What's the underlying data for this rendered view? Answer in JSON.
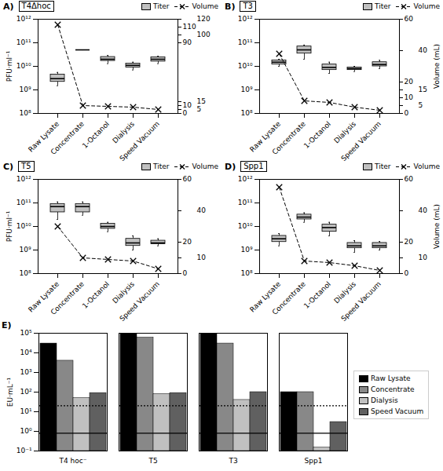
{
  "chart_data": [
    {
      "type": "box",
      "title": "T4Δhoc",
      "annotations": [
        "A)"
      ],
      "categories": [
        "Raw Lysate",
        "Concentrate",
        "1-Octanol",
        "Dialysis",
        "Speed Vacuum"
      ],
      "ylabel": "PFU·ml⁻¹",
      "log": "y",
      "ylim": [
        100000000.0,
        1000000000000.0
      ],
      "yticks": [
        {
          "value": 100000000.0,
          "label": "10⁸"
        },
        {
          "value": 1000000000.0,
          "label": "10⁹"
        },
        {
          "value": 10000000000.0,
          "label": "10¹⁰"
        },
        {
          "value": 100000000000.0,
          "label": "10¹¹"
        },
        {
          "value": 1000000000000.0,
          "label": "10¹²"
        }
      ],
      "y2lim": [
        0,
        120
      ],
      "y2ticks": [
        0,
        5,
        10,
        15,
        90,
        100,
        110,
        120
      ],
      "legend": "upper right",
      "series": [
        {
          "name": "Titer",
          "type": "box",
          "color": "#c0c0c0",
          "median": [
            3000000000.0,
            50000000000.0,
            20000000000.0,
            11000000000.0,
            20000000000.0
          ],
          "q1": [
            2200000000.0,
            50000000000.0,
            17000000000.0,
            9000000000.0,
            16000000000.0
          ],
          "q3": [
            4500000000.0,
            50000000000.0,
            25000000000.0,
            13000000000.0,
            24000000000.0
          ],
          "low": [
            1500000000.0,
            50000000000.0,
            13000000000.0,
            7000000000.0,
            13000000000.0
          ],
          "high": [
            5500000000.0,
            50000000000.0,
            29000000000.0,
            15000000000.0,
            27000000000.0
          ]
        },
        {
          "name": "Volume",
          "type": "line",
          "axis": "y2",
          "color": "#000000",
          "marker": "x",
          "line_style": "dashed",
          "values": [
            113,
            10,
            9,
            8,
            5
          ]
        }
      ]
    },
    {
      "type": "box",
      "title": "T3",
      "annotations": [
        "B)"
      ],
      "categories": [
        "Raw Lysate",
        "Concentrate",
        "1-Octanol",
        "Dialysis",
        "Speed Vacuum"
      ],
      "y2label": "Volume (mL)",
      "log": "y",
      "ylim": [
        100000000.0,
        1000000000000.0
      ],
      "yticks": [
        {
          "value": 100000000.0,
          "label": "10⁸"
        },
        {
          "value": 1000000000.0,
          "label": "10⁹"
        },
        {
          "value": 10000000000.0,
          "label": "10¹⁰"
        },
        {
          "value": 100000000000.0,
          "label": "10¹¹"
        },
        {
          "value": 1000000000000.0,
          "label": "10¹²"
        }
      ],
      "y2lim": [
        0,
        60
      ],
      "y2ticks": [
        0,
        5,
        10,
        15,
        20,
        40,
        60
      ],
      "legend": "upper right",
      "series": [
        {
          "name": "Titer",
          "type": "box",
          "color": "#c0c0c0",
          "median": [
            15000000000.0,
            50000000000.0,
            9000000000.0,
            8000000000.0,
            12000000000.0
          ],
          "q1": [
            12000000000.0,
            35000000000.0,
            7000000000.0,
            7000000000.0,
            10000000000.0
          ],
          "q3": [
            18000000000.0,
            70000000000.0,
            12000000000.0,
            9000000000.0,
            15000000000.0
          ],
          "low": [
            10000000000.0,
            20000000000.0,
            5000000000.0,
            6000000000.0,
            8000000000.0
          ],
          "high": [
            20000000000.0,
            80000000000.0,
            15000000000.0,
            10000000000.0,
            18000000000.0
          ]
        },
        {
          "name": "Volume",
          "type": "line",
          "axis": "y2",
          "color": "#000000",
          "marker": "x",
          "line_style": "dashed",
          "values": [
            38,
            8,
            7,
            4,
            2
          ]
        }
      ]
    },
    {
      "type": "box",
      "title": "T5",
      "annotations": [
        "C)"
      ],
      "categories": [
        "Raw Lysate",
        "Concentrate",
        "1-Octanol",
        "Dialysis",
        "Speed Vacuum"
      ],
      "ylabel": "PFU·ml⁻¹",
      "log": "y",
      "ylim": [
        100000000.0,
        1000000000000.0
      ],
      "yticks": [
        {
          "value": 100000000.0,
          "label": "10⁸"
        },
        {
          "value": 1000000000.0,
          "label": "10⁹"
        },
        {
          "value": 10000000000.0,
          "label": "10¹⁰"
        },
        {
          "value": 100000000000.0,
          "label": "10¹¹"
        },
        {
          "value": 1000000000000.0,
          "label": "10¹²"
        }
      ],
      "y2lim": [
        0,
        60
      ],
      "y2ticks": [
        0,
        10,
        20,
        40,
        60
      ],
      "legend": "upper right",
      "series": [
        {
          "name": "Titer",
          "type": "box",
          "color": "#c0c0c0",
          "median": [
            70000000000.0,
            70000000000.0,
            10000000000.0,
            2000000000.0,
            2000000000.0
          ],
          "q1": [
            40000000000.0,
            40000000000.0,
            8000000000.0,
            1500000000.0,
            1800000000.0
          ],
          "q3": [
            90000000000.0,
            90000000000.0,
            13000000000.0,
            3000000000.0,
            2500000000.0
          ],
          "low": [
            20000000000.0,
            30000000000.0,
            6000000000.0,
            1000000000.0,
            1500000000.0
          ],
          "high": [
            110000000000.0,
            110000000000.0,
            15000000000.0,
            4000000000.0,
            3000000000.0
          ]
        },
        {
          "name": "Volume",
          "type": "line",
          "axis": "y2",
          "color": "#000000",
          "marker": "x",
          "line_style": "dashed",
          "values": [
            30,
            10,
            9,
            8,
            3
          ]
        }
      ]
    },
    {
      "type": "box",
      "title": "Spp1",
      "annotations": [
        "D)"
      ],
      "categories": [
        "Raw Lysate",
        "Concentrate",
        "1-Octanol",
        "Dialysis",
        "Speed Vacuum"
      ],
      "y2label": "Volume (mL)",
      "log": "y",
      "ylim": [
        100000000.0,
        1000000000000.0
      ],
      "yticks": [
        {
          "value": 100000000.0,
          "label": "10⁸"
        },
        {
          "value": 1000000000.0,
          "label": "10⁹"
        },
        {
          "value": 10000000000.0,
          "label": "10¹⁰"
        },
        {
          "value": 100000000000.0,
          "label": "10¹¹"
        },
        {
          "value": 1000000000000.0,
          "label": "10¹²"
        }
      ],
      "y2lim": [
        0,
        60
      ],
      "y2ticks": [
        0,
        10,
        20,
        40,
        60
      ],
      "legend": "upper right",
      "series": [
        {
          "name": "Titer",
          "type": "box",
          "color": "#c0c0c0",
          "median": [
            3000000000.0,
            25000000000.0,
            9000000000.0,
            1500000000.0,
            1500000000.0
          ],
          "q1": [
            2200000000.0,
            20000000000.0,
            6000000000.0,
            1200000000.0,
            1200000000.0
          ],
          "q3": [
            4000000000.0,
            32000000000.0,
            12000000000.0,
            2000000000.0,
            2000000000.0
          ],
          "low": [
            1500000000.0,
            15000000000.0,
            4000000000.0,
            800000000.0,
            1000000000.0
          ],
          "high": [
            5000000000.0,
            38000000000.0,
            15000000000.0,
            2500000000.0,
            2300000000.0
          ]
        },
        {
          "name": "Volume",
          "type": "line",
          "axis": "y2",
          "color": "#000000",
          "marker": "x",
          "line_style": "dashed",
          "values": [
            55,
            8,
            7,
            5,
            2
          ]
        }
      ]
    },
    {
      "type": "bar",
      "annotations": [
        "E)"
      ],
      "categories": [
        "T4 hoc⁻",
        "T5",
        "T3",
        "Spp1"
      ],
      "ylabel": "EU·mL⁻¹",
      "log": "y",
      "ylim": [
        0.1,
        100000.0
      ],
      "yticks": [
        {
          "value": 0.1,
          "label": "10⁻¹"
        },
        {
          "value": 1,
          "label": "10⁰"
        },
        {
          "value": 10,
          "label": "10¹"
        },
        {
          "value": 100,
          "label": "10²"
        },
        {
          "value": 1000,
          "label": "10³"
        },
        {
          "value": 10000,
          "label": "10⁴"
        },
        {
          "value": 100000,
          "label": "10⁵"
        }
      ],
      "legend": "right",
      "series": [
        {
          "name": "Raw Lysate",
          "color": "#000000",
          "values": [
            30000.0,
            100000.0,
            100000.0,
            100.0
          ]
        },
        {
          "name": "Concentrate",
          "color": "#888888",
          "values": [
            4000.0,
            60000.0,
            30000.0,
            100.0
          ]
        },
        {
          "name": "Dialysis",
          "color": "#c0c0c0",
          "values": [
            50.0,
            80.0,
            40.0,
            0.15
          ]
        },
        {
          "name": "Speed Vacuum",
          "color": "#606060",
          "values": [
            90.0,
            90.0,
            100.0,
            3.0
          ]
        }
      ],
      "hlines": [
        {
          "value": 0.8,
          "line_style": "solid"
        },
        {
          "value": 20.0,
          "line_style": "dotted"
        }
      ]
    }
  ]
}
